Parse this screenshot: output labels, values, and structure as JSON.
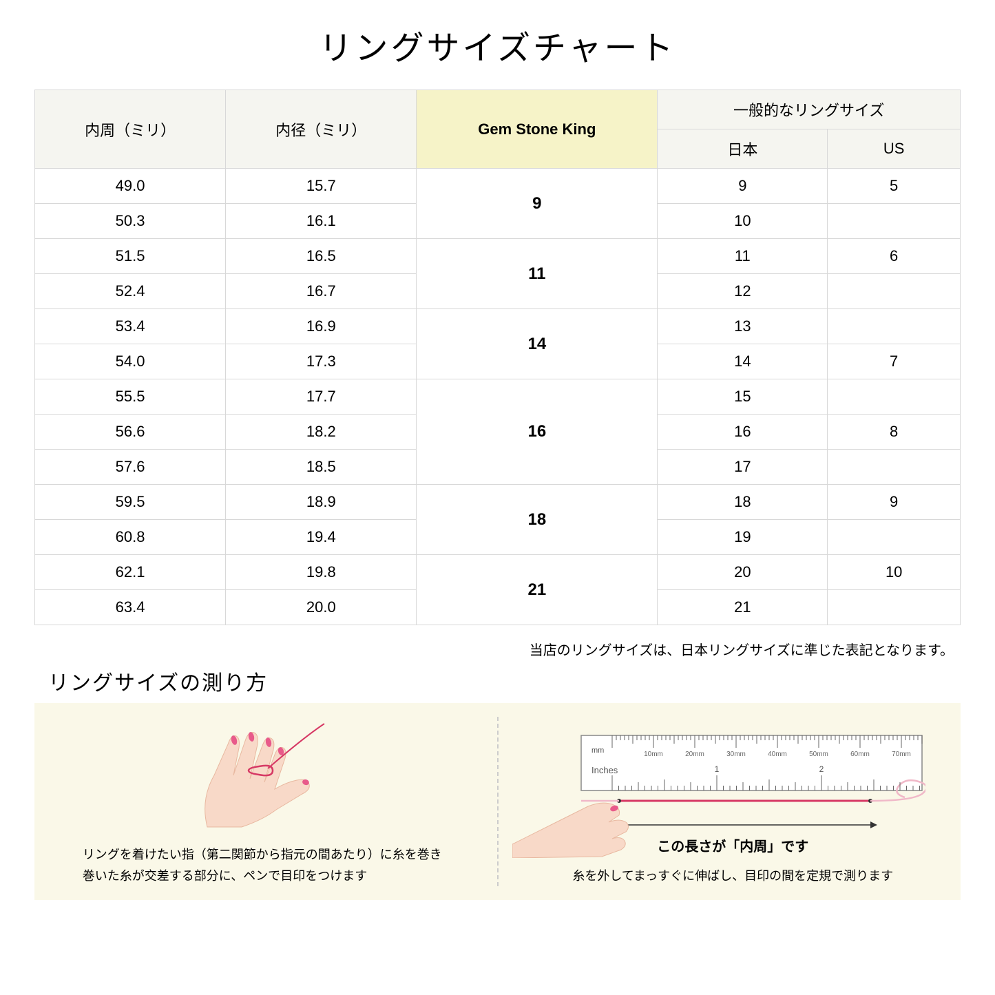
{
  "title": "リングサイズチャート",
  "headers": {
    "circumference": "内周（ミリ）",
    "diameter": "内径（ミリ）",
    "gsk": "Gem Stone King",
    "general": "一般的なリングサイズ",
    "japan": "日本",
    "us": "US"
  },
  "rows": [
    {
      "circ": "49.0",
      "diam": "15.7",
      "jp": "9",
      "us": "5"
    },
    {
      "circ": "50.3",
      "diam": "16.1",
      "jp": "10",
      "us": ""
    },
    {
      "circ": "51.5",
      "diam": "16.5",
      "jp": "11",
      "us": "6"
    },
    {
      "circ": "52.4",
      "diam": "16.7",
      "jp": "12",
      "us": ""
    },
    {
      "circ": "53.4",
      "diam": "16.9",
      "jp": "13",
      "us": ""
    },
    {
      "circ": "54.0",
      "diam": "17.3",
      "jp": "14",
      "us": "7"
    },
    {
      "circ": "55.5",
      "diam": "17.7",
      "jp": "15",
      "us": ""
    },
    {
      "circ": "56.6",
      "diam": "18.2",
      "jp": "16",
      "us": "8"
    },
    {
      "circ": "57.6",
      "diam": "18.5",
      "jp": "17",
      "us": ""
    },
    {
      "circ": "59.5",
      "diam": "18.9",
      "jp": "18",
      "us": "9"
    },
    {
      "circ": "60.8",
      "diam": "19.4",
      "jp": "19",
      "us": ""
    },
    {
      "circ": "62.1",
      "diam": "19.8",
      "jp": "20",
      "us": "10"
    },
    {
      "circ": "63.4",
      "diam": "20.0",
      "jp": "21",
      "us": ""
    }
  ],
  "gsk_groups": [
    {
      "span": 2,
      "val": "9"
    },
    {
      "span": 2,
      "val": "11"
    },
    {
      "span": 2,
      "val": "14"
    },
    {
      "span": 3,
      "val": "16"
    },
    {
      "span": 2,
      "val": "18"
    },
    {
      "span": 2,
      "val": "21"
    }
  ],
  "note": "当店のリングサイズは、日本リングサイズに準じた表記となります。",
  "subtitle": "リングサイズの測り方",
  "instruction1_line1": "リングを着けたい指（第二関節から指元の間あたり）に糸を巻き",
  "instruction1_line2": "巻いた糸が交差する部分に、ペンで目印をつけます",
  "instruction2": "糸を外してまっすぐに伸ばし、目印の間を定規で測ります",
  "measure_label": "この長さが「内周」です",
  "ruler_mm": "mm",
  "ruler_inches": "Inches",
  "ruler_ticks": [
    "10mm",
    "20mm",
    "30mm",
    "40mm",
    "50mm",
    "60mm",
    "70mm"
  ],
  "colors": {
    "header_bg": "#f5f5f0",
    "highlight_bg": "#f6f3c8",
    "border": "#d8d8d8",
    "instruction_bg": "#faf8e8",
    "skin": "#f8d9c8",
    "skin_dark": "#e8b8a0",
    "nail": "#e85a8a",
    "thread": "#d63864",
    "ruler_border": "#888"
  }
}
